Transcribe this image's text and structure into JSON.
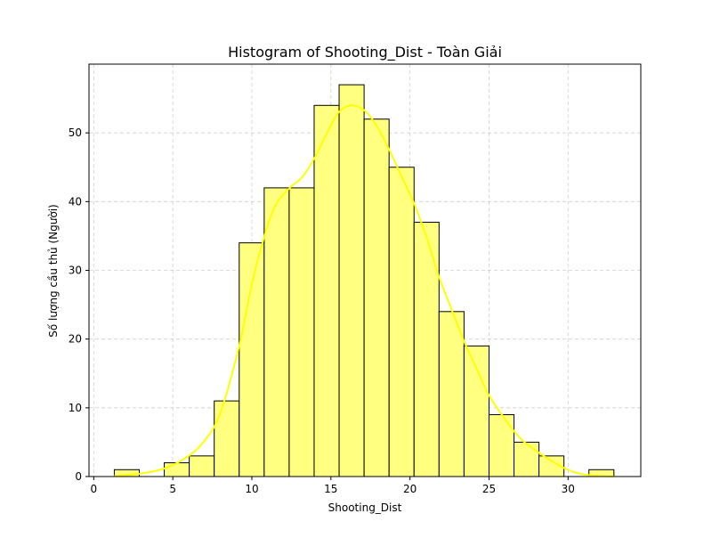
{
  "chart_data": {
    "type": "bar",
    "subtype": "histogram-with-kde",
    "title": "Histogram of Shooting_Dist - Toàn Giải",
    "xlabel": "Shooting_Dist",
    "ylabel": "Số lượng cầu thủ (Người)",
    "xlim": [
      -0.3,
      34.6
    ],
    "ylim": [
      0,
      60
    ],
    "xticks": [
      0,
      5,
      10,
      15,
      20,
      25,
      30
    ],
    "yticks": [
      0,
      10,
      20,
      30,
      40,
      50
    ],
    "grid": true,
    "bar_color": "#ffff80",
    "bar_edge_color": "#000000",
    "kde_color": "#ffff00",
    "bins": [
      {
        "x0": 1.3,
        "x1": 2.88,
        "count": 1
      },
      {
        "x0": 2.88,
        "x1": 4.46,
        "count": 0
      },
      {
        "x0": 4.46,
        "x1": 6.04,
        "count": 2
      },
      {
        "x0": 6.04,
        "x1": 7.62,
        "count": 3
      },
      {
        "x0": 7.62,
        "x1": 9.2,
        "count": 11
      },
      {
        "x0": 9.2,
        "x1": 10.78,
        "count": 34
      },
      {
        "x0": 10.78,
        "x1": 12.36,
        "count": 42
      },
      {
        "x0": 12.36,
        "x1": 13.94,
        "count": 42
      },
      {
        "x0": 13.94,
        "x1": 15.52,
        "count": 54
      },
      {
        "x0": 15.52,
        "x1": 17.1,
        "count": 57
      },
      {
        "x0": 17.1,
        "x1": 18.68,
        "count": 52
      },
      {
        "x0": 18.68,
        "x1": 20.26,
        "count": 45
      },
      {
        "x0": 20.26,
        "x1": 21.84,
        "count": 37
      },
      {
        "x0": 21.84,
        "x1": 23.42,
        "count": 24
      },
      {
        "x0": 23.42,
        "x1": 25.0,
        "count": 19
      },
      {
        "x0": 25.0,
        "x1": 26.58,
        "count": 9
      },
      {
        "x0": 26.58,
        "x1": 28.16,
        "count": 5
      },
      {
        "x0": 28.16,
        "x1": 29.74,
        "count": 3
      },
      {
        "x0": 29.74,
        "x1": 31.32,
        "count": 0
      },
      {
        "x0": 31.32,
        "x1": 32.9,
        "count": 1
      }
    ],
    "kde": {
      "x": [
        1.3,
        2.9,
        4.5,
        6.0,
        7.0,
        8.0,
        9.2,
        10.0,
        10.8,
        11.5,
        12.4,
        13.2,
        14.0,
        14.8,
        15.5,
        16.3,
        17.1,
        17.9,
        18.7,
        19.5,
        20.3,
        21.1,
        21.8,
        22.6,
        23.4,
        24.2,
        25.0,
        26.0,
        27.0,
        28.2,
        29.7,
        31.0,
        32.9
      ],
      "y": [
        0.1,
        0.4,
        1.2,
        3.0,
        5.2,
        9.2,
        19.0,
        28.0,
        35.0,
        39.5,
        42.0,
        43.6,
        46.5,
        50.2,
        53.0,
        54.0,
        53.3,
        51.0,
        47.5,
        43.5,
        39.5,
        34.5,
        29.3,
        24.5,
        19.8,
        15.8,
        11.8,
        8.4,
        5.5,
        3.4,
        1.3,
        0.3,
        0.0
      ]
    }
  }
}
